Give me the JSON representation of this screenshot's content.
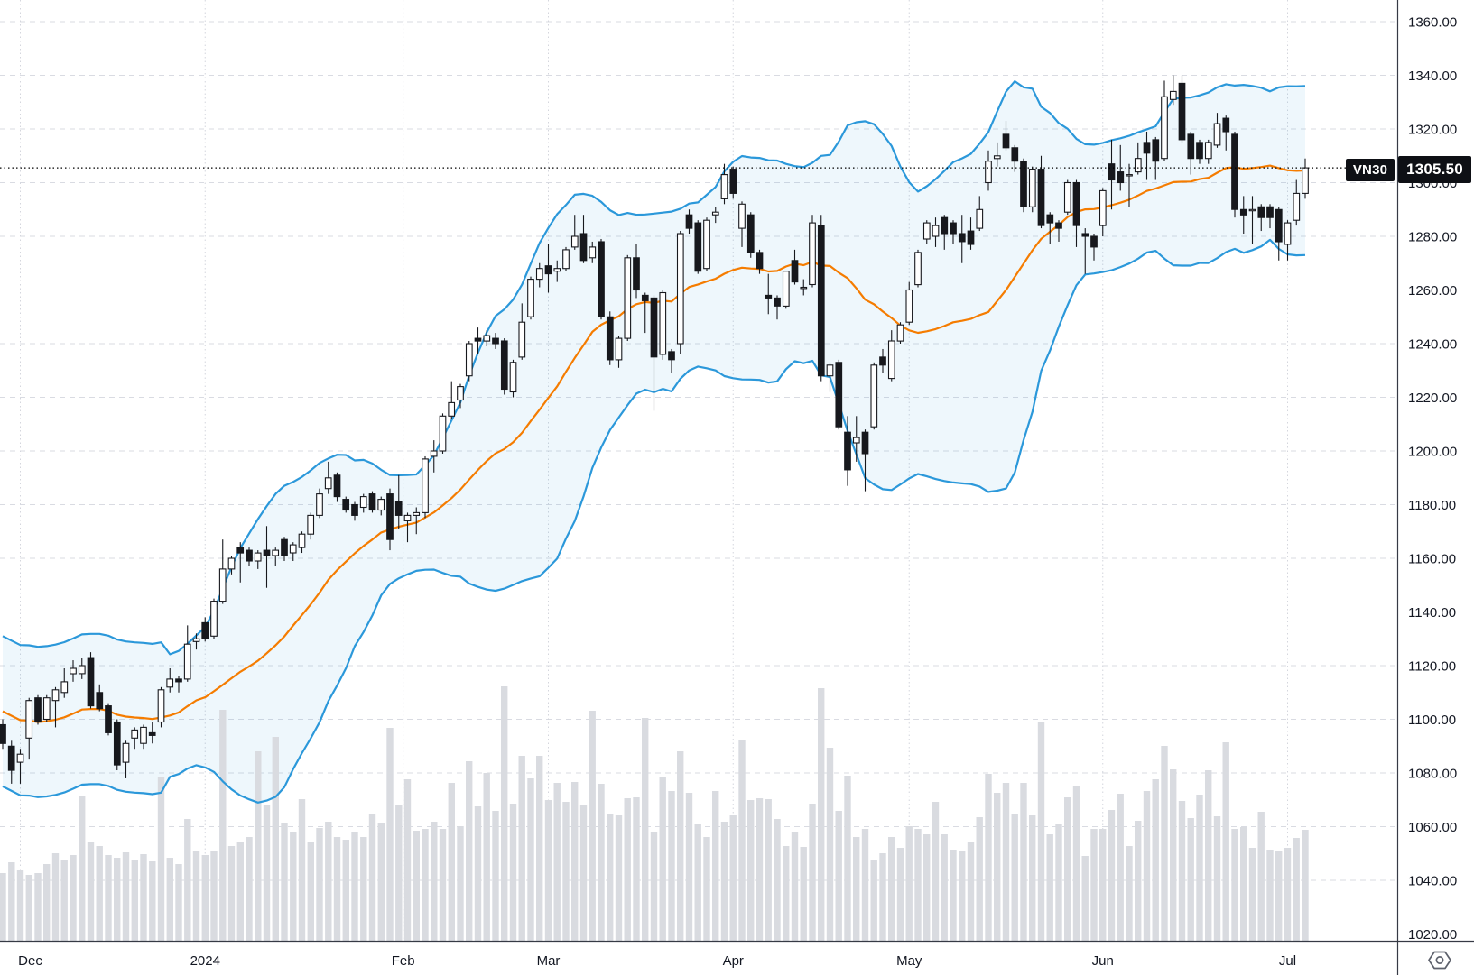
{
  "price_label": {
    "symbol": "VN30",
    "value": "1305.50"
  },
  "current_price": 1305.5,
  "colors": {
    "background": "#ffffff",
    "grid_dash": "#d9dbe2",
    "month_dot": "#d4d6dd",
    "axis_border": "#363a45",
    "axis_text": "#131722",
    "candle_up_fill": "#ffffff",
    "candle_down_fill": "#17181d",
    "candle_stroke": "#17181d",
    "volume_bar": "#d9dbe0",
    "bollinger_band": "#2b98da",
    "bollinger_fill_opacity": 0.08,
    "bollinger_basis": "#f57c00",
    "price_line": "#000000",
    "label_bg": "#0e1015",
    "label_text": "#ffffff",
    "icon_stroke": "#5d616c"
  },
  "icons": {
    "bottom_right": "hexagon-dot-settings-icon"
  },
  "chart_data": {
    "type": "candlestick",
    "symbol": "VN30",
    "last_price": 1305.5,
    "x_unit": "trading-day",
    "visible_price_range": [
      1017.5,
      1368.1
    ],
    "grid": "dashed",
    "legend_position": "none",
    "price_ticks": [
      "1020.00",
      "1040.00",
      "1060.00",
      "1080.00",
      "1100.00",
      "1120.00",
      "1140.00",
      "1160.00",
      "1180.00",
      "1200.00",
      "1220.00",
      "1240.00",
      "1260.00",
      "1280.00",
      "1300.00",
      "1320.00",
      "1340.00",
      "1360.00"
    ],
    "time_ticks": [
      {
        "i": 2,
        "label": "Dec"
      },
      {
        "i": 23,
        "label": "2024"
      },
      {
        "i": 45.5,
        "label": "Feb"
      },
      {
        "i": 62,
        "label": "Mar"
      },
      {
        "i": 83,
        "label": "Apr"
      },
      {
        "i": 103,
        "label": "May"
      },
      {
        "i": 125,
        "label": "Jun"
      },
      {
        "i": 146,
        "label": "Jul"
      }
    ],
    "overlays": {
      "bollinger_bands": {
        "period": 20,
        "stdev_mult": 2,
        "basis_color": "#f57c00",
        "band_color": "#2b98da"
      },
      "volume": {
        "style": "columns",
        "color": "#d9dbe0"
      }
    },
    "columns": [
      "open",
      "high",
      "low",
      "close",
      "volume_rel"
    ],
    "candles": [
      [
        1098,
        1100,
        1089,
        1091,
        75
      ],
      [
        1090,
        1092,
        1076,
        1081,
        87
      ],
      [
        1084,
        1089,
        1076,
        1087,
        78
      ],
      [
        1093,
        1108,
        1085,
        1107,
        73
      ],
      [
        1108,
        1109,
        1098,
        1099,
        75
      ],
      [
        1100,
        1109,
        1099,
        1108,
        85
      ],
      [
        1107,
        1112,
        1097,
        1111,
        97
      ],
      [
        1110,
        1119,
        1108,
        1114,
        90
      ],
      [
        1117,
        1122,
        1114,
        1119,
        95
      ],
      [
        1117,
        1123,
        1115,
        1120,
        160
      ],
      [
        1123,
        1125,
        1104,
        1105,
        110
      ],
      [
        1110,
        1113,
        1103,
        1104,
        105
      ],
      [
        1105,
        1106,
        1094,
        1095,
        95
      ],
      [
        1099,
        1100,
        1081,
        1083,
        92
      ],
      [
        1084,
        1092,
        1078,
        1091,
        98
      ],
      [
        1093,
        1097,
        1089,
        1096,
        90
      ],
      [
        1091,
        1098,
        1089,
        1097,
        96
      ],
      [
        1095,
        1099,
        1091,
        1094,
        88
      ],
      [
        1099,
        1112,
        1097,
        1111,
        182
      ],
      [
        1112,
        1119,
        1110,
        1115,
        92
      ],
      [
        1115,
        1116,
        1110,
        1114,
        85
      ],
      [
        1115,
        1135,
        1114,
        1128,
        135
      ],
      [
        1129,
        1132,
        1126,
        1130,
        100
      ],
      [
        1136,
        1138,
        1129,
        1130,
        95
      ],
      [
        1131,
        1145,
        1130,
        1144,
        100
      ],
      [
        1144,
        1167,
        1143,
        1156,
        256
      ],
      [
        1156,
        1161,
        1154,
        1160,
        105
      ],
      [
        1164,
        1166,
        1151,
        1162,
        110
      ],
      [
        1163,
        1164,
        1157,
        1159,
        115
      ],
      [
        1159,
        1163,
        1156,
        1162,
        210
      ],
      [
        1163,
        1172,
        1149,
        1161,
        150
      ],
      [
        1161,
        1164,
        1157,
        1163,
        226
      ],
      [
        1167,
        1168,
        1159,
        1161,
        130
      ],
      [
        1162,
        1166,
        1159,
        1165,
        120
      ],
      [
        1164,
        1170,
        1162,
        1169,
        157
      ],
      [
        1169,
        1177,
        1167,
        1176,
        110
      ],
      [
        1176,
        1186,
        1175,
        1184,
        125
      ],
      [
        1186,
        1196,
        1184,
        1190,
        132
      ],
      [
        1191,
        1192,
        1181,
        1183,
        115
      ],
      [
        1182,
        1183,
        1177,
        1178,
        112
      ],
      [
        1180,
        1181,
        1174,
        1176,
        120
      ],
      [
        1179,
        1184,
        1177,
        1183,
        115
      ],
      [
        1184,
        1185,
        1177,
        1178,
        140
      ],
      [
        1178,
        1183,
        1176,
        1182,
        130
      ],
      [
        1184,
        1186,
        1163,
        1167,
        236
      ],
      [
        1181,
        1191,
        1171,
        1176,
        150
      ],
      [
        1174,
        1177,
        1166,
        1176,
        179
      ],
      [
        1176,
        1179,
        1169,
        1177,
        122
      ],
      [
        1177,
        1198,
        1175,
        1197,
        124
      ],
      [
        1198,
        1204,
        1192,
        1200,
        132
      ],
      [
        1200,
        1214,
        1199,
        1213,
        124
      ],
      [
        1213,
        1226,
        1212,
        1218,
        175
      ],
      [
        1219,
        1225,
        1216,
        1224,
        127
      ],
      [
        1228,
        1241,
        1226,
        1240,
        199
      ],
      [
        1242,
        1246,
        1236,
        1241,
        149
      ],
      [
        1241,
        1245,
        1239,
        1243,
        186
      ],
      [
        1242,
        1244,
        1238,
        1240,
        144
      ],
      [
        1241,
        1242,
        1221,
        1223,
        282
      ],
      [
        1222,
        1234,
        1220,
        1233,
        152
      ],
      [
        1235,
        1255,
        1234,
        1248,
        205
      ],
      [
        1250,
        1265,
        1249,
        1264,
        180
      ],
      [
        1264,
        1270,
        1261,
        1268,
        205
      ],
      [
        1269,
        1277,
        1259,
        1266,
        156
      ],
      [
        1267,
        1271,
        1263,
        1268,
        175
      ],
      [
        1268,
        1276,
        1267,
        1275,
        154
      ],
      [
        1276,
        1288,
        1275,
        1280,
        176
      ],
      [
        1281,
        1288,
        1270,
        1271,
        151
      ],
      [
        1272,
        1278,
        1270,
        1276,
        255
      ],
      [
        1278,
        1279,
        1249,
        1250,
        174
      ],
      [
        1250,
        1252,
        1232,
        1234,
        141
      ],
      [
        1234,
        1243,
        1231,
        1242,
        139
      ],
      [
        1242,
        1273,
        1241,
        1272,
        158
      ],
      [
        1272,
        1277,
        1257,
        1260,
        159
      ],
      [
        1258,
        1259,
        1244,
        1256,
        247
      ],
      [
        1257,
        1258,
        1215,
        1235,
        120
      ],
      [
        1236,
        1260,
        1234,
        1259,
        182
      ],
      [
        1237,
        1238,
        1229,
        1234,
        166
      ],
      [
        1240,
        1282,
        1236,
        1281,
        210
      ],
      [
        1288,
        1290,
        1281,
        1283,
        164
      ],
      [
        1285,
        1286,
        1266,
        1267,
        129
      ],
      [
        1268,
        1287,
        1267,
        1286,
        115
      ],
      [
        1288,
        1291,
        1285,
        1289,
        166
      ],
      [
        1294,
        1307,
        1292,
        1303,
        132
      ],
      [
        1305,
        1306,
        1294,
        1296,
        139
      ],
      [
        1283,
        1293,
        1276,
        1292,
        222
      ],
      [
        1288,
        1289,
        1272,
        1274,
        156
      ],
      [
        1274,
        1275,
        1266,
        1268,
        158
      ],
      [
        1258,
        1266,
        1251,
        1257,
        157
      ],
      [
        1257,
        1258,
        1249,
        1254,
        135
      ],
      [
        1254,
        1267,
        1253,
        1267,
        105
      ],
      [
        1271,
        1275,
        1262,
        1263,
        121
      ],
      [
        1261,
        1264,
        1258,
        1261,
        104
      ],
      [
        1262,
        1288,
        1261,
        1285,
        152
      ],
      [
        1284,
        1288,
        1226,
        1228,
        280
      ],
      [
        1228,
        1233,
        1222,
        1232,
        214
      ],
      [
        1233,
        1234,
        1208,
        1209,
        144
      ],
      [
        1207,
        1213,
        1187,
        1193,
        183
      ],
      [
        1203,
        1213,
        1196,
        1205,
        115
      ],
      [
        1207,
        1208,
        1185,
        1199,
        124
      ],
      [
        1209,
        1233,
        1208,
        1232,
        89
      ],
      [
        1235,
        1238,
        1229,
        1232,
        97
      ],
      [
        1227,
        1245,
        1226,
        1241,
        115
      ],
      [
        1241,
        1248,
        1240,
        1247,
        103
      ],
      [
        1248,
        1263,
        1247,
        1260,
        127
      ],
      [
        1262,
        1275,
        1261,
        1274,
        124
      ],
      [
        1279,
        1286,
        1277,
        1285,
        118
      ],
      [
        1280,
        1287,
        1276,
        1284,
        154
      ],
      [
        1287,
        1288,
        1275,
        1281,
        118
      ],
      [
        1285,
        1286,
        1277,
        1281,
        101
      ],
      [
        1281,
        1288,
        1270,
        1278,
        99
      ],
      [
        1282,
        1287,
        1275,
        1277,
        109
      ],
      [
        1283,
        1295,
        1282,
        1290,
        137
      ],
      [
        1300,
        1312,
        1297,
        1308,
        185
      ],
      [
        1309,
        1315,
        1306,
        1310,
        164
      ],
      [
        1318,
        1323,
        1312,
        1313,
        175
      ],
      [
        1313,
        1314,
        1304,
        1308,
        141
      ],
      [
        1308,
        1309,
        1289,
        1291,
        175
      ],
      [
        1291,
        1306,
        1289,
        1305,
        139
      ],
      [
        1305,
        1310,
        1283,
        1284,
        242
      ],
      [
        1288,
        1289,
        1277,
        1285,
        118
      ],
      [
        1285,
        1286,
        1278,
        1283,
        129
      ],
      [
        1289,
        1301,
        1288,
        1300,
        159
      ],
      [
        1300,
        1301,
        1276,
        1284,
        172
      ],
      [
        1281,
        1283,
        1266,
        1280,
        94
      ],
      [
        1280,
        1281,
        1271,
        1276,
        124
      ],
      [
        1284,
        1298,
        1280,
        1297,
        124
      ],
      [
        1307,
        1316,
        1290,
        1301,
        145
      ],
      [
        1304,
        1314,
        1297,
        1300,
        163
      ],
      [
        1303,
        1307,
        1291,
        1303,
        105
      ],
      [
        1304,
        1315,
        1303,
        1309,
        133
      ],
      [
        1315,
        1319,
        1301,
        1311,
        166
      ],
      [
        1316,
        1317,
        1301,
        1308,
        179
      ],
      [
        1309,
        1338,
        1308,
        1332,
        216
      ],
      [
        1331,
        1340,
        1329,
        1334,
        190
      ],
      [
        1337,
        1340,
        1315,
        1316,
        155
      ],
      [
        1318,
        1319,
        1303,
        1309,
        136
      ],
      [
        1315,
        1316,
        1307,
        1309,
        162
      ],
      [
        1309,
        1316,
        1307,
        1315,
        189
      ],
      [
        1314,
        1326,
        1313,
        1322,
        138
      ],
      [
        1324,
        1325,
        1312,
        1319,
        220
      ],
      [
        1318,
        1319,
        1287,
        1290,
        124
      ],
      [
        1290,
        1295,
        1281,
        1288,
        126
      ],
      [
        1290,
        1295,
        1277,
        1290,
        103
      ],
      [
        1291,
        1292,
        1282,
        1287,
        143
      ],
      [
        1291,
        1292,
        1283,
        1287,
        101
      ],
      [
        1290,
        1291,
        1271,
        1278,
        99
      ],
      [
        1277,
        1286,
        1271,
        1285,
        103
      ],
      [
        1286,
        1301,
        1284,
        1296,
        114
      ],
      [
        1296,
        1309,
        1294,
        1305.5,
        123
      ]
    ]
  }
}
